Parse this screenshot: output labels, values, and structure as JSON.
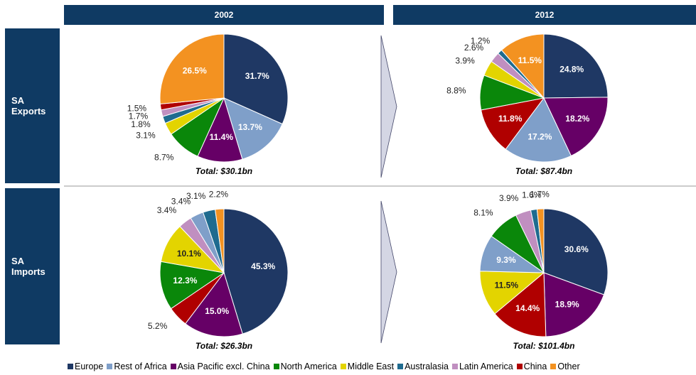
{
  "columns": [
    "2002",
    "2012"
  ],
  "rows": [
    "SA Exports",
    "SA Imports"
  ],
  "chart_data": [
    {
      "type": "pie",
      "note": "Total: $30.1bn",
      "categories": [
        "Europe",
        "Rest of Africa",
        "Asia Pacific excl. China",
        "North America",
        "Middle East",
        "Australasia",
        "Latin America",
        "China",
        "Other"
      ],
      "values": [
        31.7,
        13.7,
        11.4,
        8.7,
        3.1,
        1.8,
        1.7,
        1.5,
        26.5
      ],
      "value_labels": [
        "31.7%",
        "13.7%",
        "11.4%",
        "8.7%",
        "3.1%",
        "1.8%",
        "1.7%",
        "1.5%",
        "26.5%"
      ],
      "colors": [
        "#1f3864",
        "#7f9fc9",
        "#660066",
        "#0a870a",
        "#e3d400",
        "#1f6b8f",
        "#c08fc0",
        "#b00000",
        "#f39221"
      ]
    },
    {
      "type": "pie",
      "note": "Total: $87.4bn",
      "categories": [
        "Europe",
        "Asia Pacific excl. China",
        "Rest of Africa",
        "China",
        "North America",
        "Middle East",
        "Latin America",
        "Australasia",
        "Other"
      ],
      "values": [
        24.8,
        18.2,
        17.2,
        11.8,
        8.8,
        3.9,
        2.6,
        1.2,
        11.5
      ],
      "value_labels": [
        "24.8%",
        "18.2%",
        "17.2%",
        "11.8%",
        "8.8%",
        "3.9%",
        "2.6%",
        "1.2%",
        "11.5%"
      ],
      "colors": [
        "#1f3864",
        "#660066",
        "#7f9fc9",
        "#b00000",
        "#0a870a",
        "#e3d400",
        "#c08fc0",
        "#1f6b8f",
        "#f39221"
      ]
    },
    {
      "type": "pie",
      "note": "Total: $26.3bn",
      "categories": [
        "Europe",
        "Asia Pacific excl. China",
        "China",
        "North America",
        "Middle East",
        "Latin America",
        "Rest of Africa",
        "Australasia",
        "Other"
      ],
      "values": [
        45.3,
        15.0,
        5.2,
        12.3,
        10.1,
        3.4,
        3.4,
        3.1,
        2.2
      ],
      "value_labels": [
        "45.3%",
        "15.0%",
        "5.2%",
        "12.3%",
        "10.1%",
        "3.4%",
        "3.4%",
        "3.1%",
        "2.2%"
      ],
      "colors": [
        "#1f3864",
        "#660066",
        "#b00000",
        "#0a870a",
        "#e3d400",
        "#c08fc0",
        "#7f9fc9",
        "#1f6b8f",
        "#f39221"
      ]
    },
    {
      "type": "pie",
      "note": "Total: $101.4bn",
      "categories": [
        "Europe",
        "Asia Pacific excl. China",
        "China",
        "Middle East",
        "Rest of Africa",
        "North America",
        "Latin America",
        "Australasia",
        "Other"
      ],
      "values": [
        30.6,
        18.9,
        14.4,
        11.5,
        9.3,
        8.1,
        3.9,
        1.6,
        1.7
      ],
      "value_labels": [
        "30.6%",
        "18.9%",
        "14.4%",
        "11.5%",
        "9.3%",
        "8.1%",
        "3.9%",
        "1.6%",
        "1.7%"
      ],
      "colors": [
        "#1f3864",
        "#660066",
        "#b00000",
        "#e3d400",
        "#7f9fc9",
        "#0a870a",
        "#c08fc0",
        "#1f6b8f",
        "#f39221"
      ]
    }
  ],
  "legend": {
    "labels": [
      "Europe",
      "Rest of Africa",
      "Asia Pacific excl. China",
      "North America",
      "Middle East",
      "Australasia",
      "Latin America",
      "China",
      "Other"
    ],
    "colors": [
      "#1f3864",
      "#7f9fc9",
      "#660066",
      "#0a870a",
      "#e3d400",
      "#1f6b8f",
      "#c08fc0",
      "#b00000",
      "#f39221"
    ]
  }
}
